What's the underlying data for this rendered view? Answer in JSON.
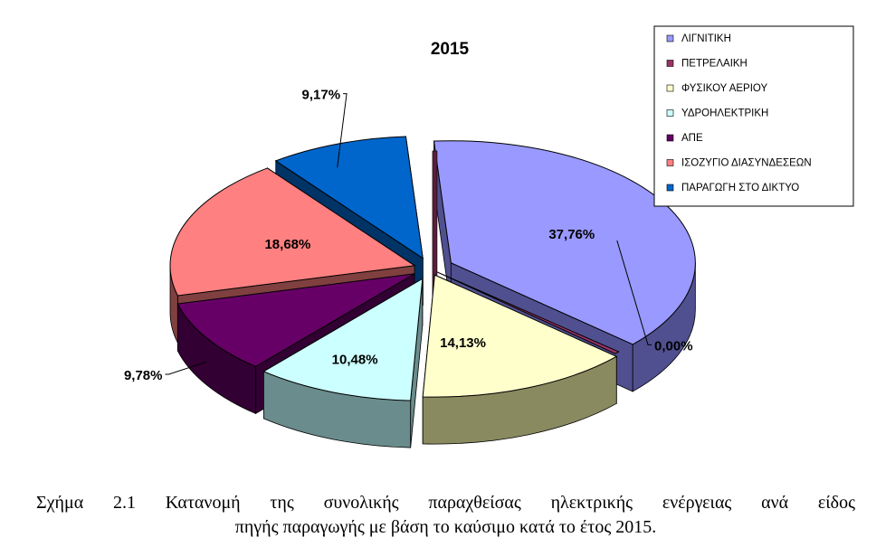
{
  "chart_data": {
    "type": "pie",
    "title": "2015",
    "legend_position": "top-right",
    "slices": [
      {
        "name": "ΛΙΓΝΙΤΙΚΗ",
        "value": 37.76,
        "label": "37,76%",
        "color": "#9999ff",
        "side": "#505090"
      },
      {
        "name": "ΠΕΤΡΕΛΑΙΚΗ",
        "value": 0.0,
        "label": "0,00%",
        "color": "#993366",
        "side": "#5a1e3c"
      },
      {
        "name": "ΦΥΣΙΚΟΥ ΑΕΡΙΟΥ",
        "value": 14.13,
        "label": "14,13%",
        "color": "#ffffcc",
        "side": "#8a8a60"
      },
      {
        "name": "ΥΔΡΟΗΛΕΚΤΡΙΚΗ",
        "value": 10.48,
        "label": "10,48%",
        "color": "#ccffff",
        "side": "#6a8c8c"
      },
      {
        "name": "ΑΠΕ",
        "value": 9.78,
        "label": "9,78%",
        "color": "#660066",
        "side": "#330033"
      },
      {
        "name": "ΙΣΟΖΥΓΙΟ ΔΙΑΣΥΝΔΕΣΕΩΝ",
        "value": 18.68,
        "label": "18,68%",
        "color": "#ff8080",
        "side": "#804040"
      },
      {
        "name": "ΠΑΡΑΓΩΓΗ ΣΤΟ ΔΙΚΤΥΟ",
        "value": 9.17,
        "label": "9,17%",
        "color": "#0066cc",
        "side": "#003366"
      }
    ]
  },
  "caption": {
    "line1": "Σχήμα 2.1 Κατανομή της συνολικής παραχθείσας ηλεκτρικής ενέργειας ανά είδος",
    "line2": "πηγής παραγωγής με βάση το καύσιμο κατά το έτος 2015."
  }
}
